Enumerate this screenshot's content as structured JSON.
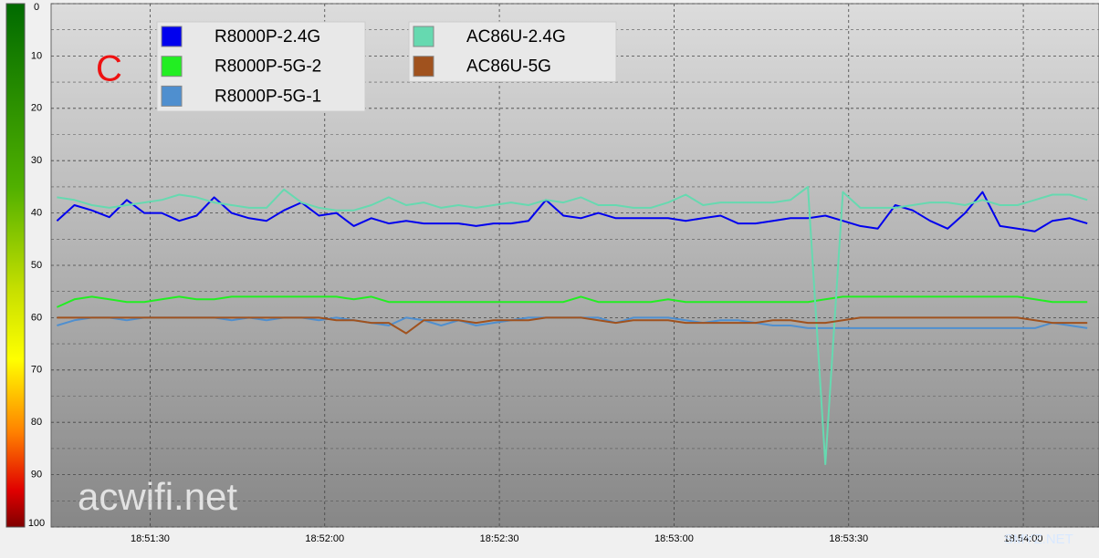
{
  "chart_data": {
    "type": "line",
    "annotation": "C",
    "watermarks": [
      "acwifi.net",
      "SMYZ.NET"
    ],
    "y_reversed": true,
    "grid": true,
    "ylim": [
      0,
      100
    ],
    "yticks": [
      0,
      10,
      20,
      30,
      40,
      50,
      60,
      70,
      80,
      90,
      100
    ],
    "xlim": [
      67873,
      68053
    ],
    "xticks": [
      {
        "value": 67890,
        "label": "18:51:30"
      },
      {
        "value": 67920,
        "label": "18:52:00"
      },
      {
        "value": 67950,
        "label": "18:52:30"
      },
      {
        "value": 67980,
        "label": "18:53:00"
      },
      {
        "value": 68010,
        "label": "18:53:30"
      },
      {
        "value": 68040,
        "label": "18:54:00"
      }
    ],
    "x": [
      67874,
      67877,
      67880,
      67883,
      67886,
      67889,
      67892,
      67895,
      67898,
      67901,
      67904,
      67907,
      67910,
      67913,
      67916,
      67919,
      67922,
      67925,
      67928,
      67931,
      67934,
      67937,
      67940,
      67943,
      67946,
      67949,
      67952,
      67955,
      67958,
      67961,
      67964,
      67967,
      67970,
      67973,
      67976,
      67979,
      67982,
      67985,
      67988,
      67991,
      67994,
      67997,
      68000,
      68003,
      68006,
      68009,
      68012,
      68015,
      68018,
      68021,
      68024,
      68027,
      68030,
      68033,
      68036,
      68039,
      68042,
      68045,
      68048,
      68051
    ],
    "series": [
      {
        "name": "R8000P-2.4G",
        "color": "#0000ee",
        "values": [
          41.5,
          38.5,
          39.5,
          40.8,
          37.5,
          40,
          40,
          41.5,
          40.5,
          37,
          40,
          41,
          41.5,
          39.5,
          38,
          40.5,
          40,
          42.5,
          41,
          42,
          41.5,
          42,
          42,
          42,
          42.5,
          42,
          42,
          41.5,
          37.5,
          40.5,
          41,
          40,
          41,
          41,
          41,
          41,
          41.5,
          41,
          40.5,
          42,
          42,
          41.5,
          41,
          41,
          40.5,
          41.5,
          42.5,
          43,
          38.5,
          39.5,
          41.5,
          43,
          40,
          36,
          42.5,
          43,
          43.5,
          41.5,
          41,
          42
        ]
      },
      {
        "name": "R8000P-5G-2",
        "color": "#22ee22",
        "values": [
          58,
          56.5,
          56,
          56.5,
          57,
          57,
          56.5,
          56,
          56.5,
          56.5,
          56,
          56,
          56,
          56,
          56,
          56,
          56,
          56.5,
          56,
          57,
          57,
          57,
          57,
          57,
          57,
          57,
          57,
          57,
          57,
          57,
          56,
          57,
          57,
          57,
          57,
          56.5,
          57,
          57,
          57,
          57,
          57,
          57,
          57,
          57,
          56.5,
          56,
          56,
          56,
          56,
          56,
          56,
          56,
          56,
          56,
          56,
          56,
          56.5,
          57,
          57,
          57
        ]
      },
      {
        "name": "R8000P-5G-1",
        "color": "#4f8fcf",
        "values": [
          61.5,
          60.5,
          60,
          60,
          60.5,
          60,
          60,
          60,
          60,
          60,
          60.5,
          60,
          60.5,
          60,
          60,
          60.5,
          60,
          60.5,
          61,
          61.5,
          60,
          60.5,
          61.5,
          60.5,
          61.5,
          61,
          60.5,
          60,
          60,
          60,
          60,
          60,
          61,
          60,
          60,
          60,
          60.5,
          61,
          60.5,
          60.5,
          61,
          61.5,
          61.5,
          62,
          62,
          62,
          62,
          62,
          62,
          62,
          62,
          62,
          62,
          62,
          62,
          62,
          62,
          61,
          61.5,
          62
        ]
      },
      {
        "name": "AC86U-2.4G",
        "color": "#66d9b0",
        "values": [
          37,
          37.5,
          38.5,
          39,
          38.5,
          38,
          37.5,
          36.5,
          37,
          38,
          38.5,
          39,
          39,
          35.5,
          38,
          39,
          39.5,
          39.5,
          38.5,
          37,
          38.5,
          38,
          39,
          38.5,
          39,
          38.5,
          38,
          38.5,
          37.5,
          38,
          37,
          38.5,
          38.5,
          39,
          39,
          38,
          36.5,
          38.5,
          38,
          38,
          38,
          38,
          37.5,
          35,
          88,
          36,
          39,
          39,
          39,
          38.5,
          38,
          38,
          38.5,
          37.5,
          38.5,
          38.5,
          37.5,
          36.5,
          36.5,
          37.5
        ]
      },
      {
        "name": "AC86U-5G",
        "color": "#a0521e",
        "values": [
          60,
          60,
          60,
          60,
          60,
          60,
          60,
          60,
          60,
          60,
          60,
          60,
          60,
          60,
          60,
          60,
          60.5,
          60.5,
          61,
          61,
          63,
          60.5,
          60.5,
          60.5,
          61,
          60.5,
          60.5,
          60.5,
          60,
          60,
          60,
          60.5,
          61,
          60.5,
          60.5,
          60.5,
          61,
          61,
          61,
          61,
          61,
          60.5,
          60.5,
          61,
          61,
          60.5,
          60,
          60,
          60,
          60,
          60,
          60,
          60,
          60,
          60,
          60,
          60.5,
          61,
          61,
          61
        ]
      }
    ]
  }
}
